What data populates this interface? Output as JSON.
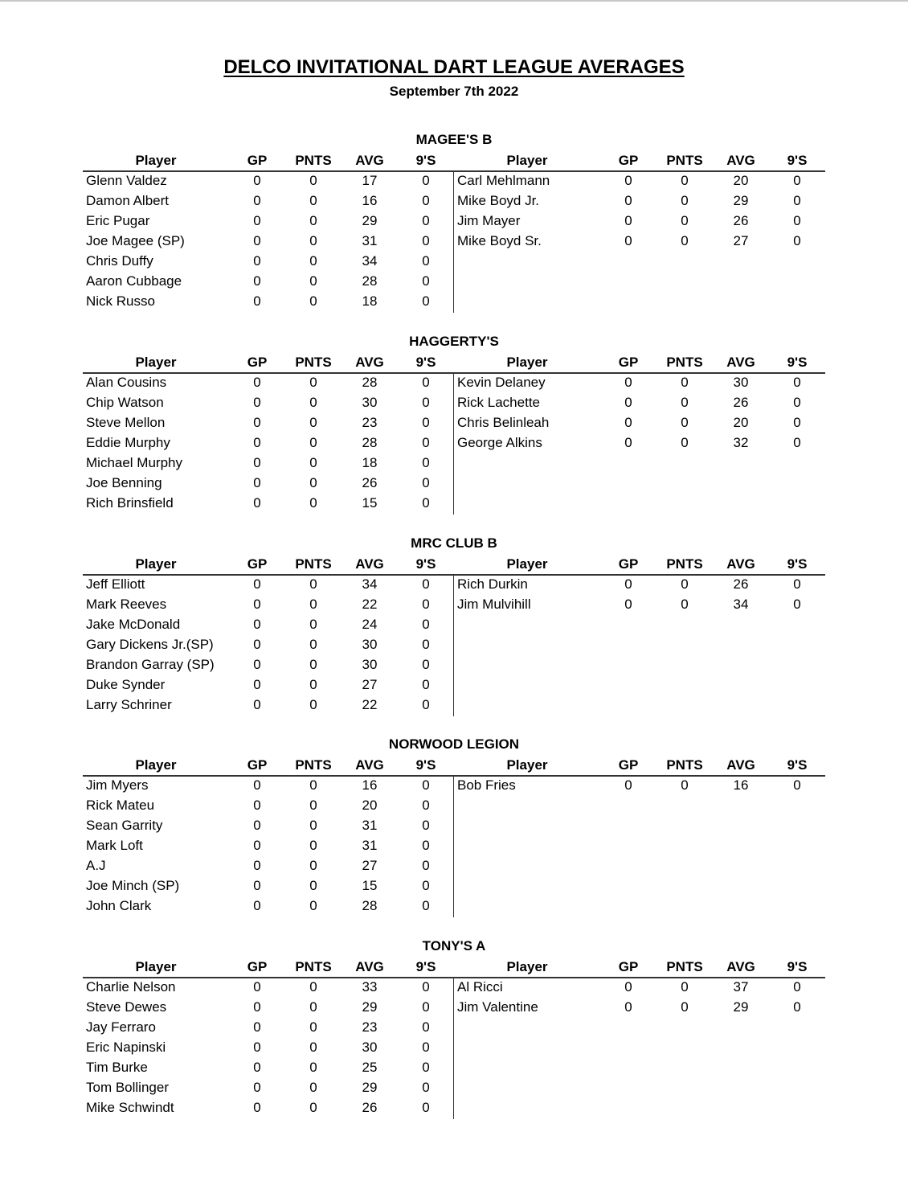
{
  "title": "DELCO INVITATIONAL DART LEAGUE AVERAGES",
  "date": "September 7th 2022",
  "columns": [
    "Player",
    "GP",
    "PNTS",
    "AVG",
    "9'S"
  ],
  "teams": [
    {
      "name": "MAGEE'S B",
      "left": [
        [
          "Glenn Valdez",
          "0",
          "0",
          "17",
          "0"
        ],
        [
          "Damon Albert",
          "0",
          "0",
          "16",
          "0"
        ],
        [
          "Eric Pugar",
          "0",
          "0",
          "29",
          "0"
        ],
        [
          "Joe Magee (SP)",
          "0",
          "0",
          "31",
          "0"
        ],
        [
          "Chris Duffy",
          "0",
          "0",
          "34",
          "0"
        ],
        [
          "Aaron Cubbage",
          "0",
          "0",
          "28",
          "0"
        ],
        [
          "Nick Russo",
          "0",
          "0",
          "18",
          "0"
        ]
      ],
      "right": [
        [
          "Carl Mehlmann",
          "0",
          "0",
          "20",
          "0"
        ],
        [
          "Mike Boyd  Jr.",
          "0",
          "0",
          "29",
          "0"
        ],
        [
          "Jim Mayer",
          "0",
          "0",
          "26",
          "0"
        ],
        [
          "Mike Boyd Sr.",
          "0",
          "0",
          "27",
          "0"
        ]
      ]
    },
    {
      "name": "HAGGERTY'S",
      "left": [
        [
          "Alan Cousins",
          "0",
          "0",
          "28",
          "0"
        ],
        [
          "Chip Watson",
          "0",
          "0",
          "30",
          "0"
        ],
        [
          "Steve Mellon",
          "0",
          "0",
          "23",
          "0"
        ],
        [
          "Eddie Murphy",
          "0",
          "0",
          "28",
          "0"
        ],
        [
          "Michael Murphy",
          "0",
          "0",
          "18",
          "0"
        ],
        [
          "Joe Benning",
          "0",
          "0",
          "26",
          "0"
        ],
        [
          "Rich Brinsfield",
          "0",
          "0",
          "15",
          "0"
        ]
      ],
      "right": [
        [
          "Kevin Delaney",
          "0",
          "0",
          "30",
          "0"
        ],
        [
          "Rick Lachette",
          "0",
          "0",
          "26",
          "0"
        ],
        [
          "Chris Belinleah",
          "0",
          "0",
          "20",
          "0"
        ],
        [
          "George Alkins",
          "0",
          "0",
          "32",
          "0"
        ]
      ]
    },
    {
      "name": "MRC CLUB B",
      "left": [
        [
          "Jeff Elliott",
          "0",
          "0",
          "34",
          "0"
        ],
        [
          "Mark Reeves",
          "0",
          "0",
          "22",
          "0"
        ],
        [
          "Jake McDonald",
          "0",
          "0",
          "24",
          "0"
        ],
        [
          "Gary Dickens Jr.(SP)",
          "0",
          "0",
          "30",
          "0"
        ],
        [
          "Brandon Garray (SP)",
          "0",
          "0",
          "30",
          "0"
        ],
        [
          "Duke Synder",
          "0",
          "0",
          "27",
          "0"
        ],
        [
          "Larry Schriner",
          "0",
          "0",
          "22",
          "0"
        ]
      ],
      "right": [
        [
          "Rich Durkin",
          "0",
          "0",
          "26",
          "0"
        ],
        [
          "Jim Mulvihill",
          "0",
          "0",
          "34",
          "0"
        ]
      ]
    },
    {
      "name": "NORWOOD LEGION",
      "left": [
        [
          "Jim Myers",
          "0",
          "0",
          "16",
          "0"
        ],
        [
          "Rick Mateu",
          "0",
          "0",
          "20",
          "0"
        ],
        [
          "Sean Garrity",
          "0",
          "0",
          "31",
          "0"
        ],
        [
          "Mark Loft",
          "0",
          "0",
          "31",
          "0"
        ],
        [
          "A.J",
          "0",
          "0",
          "27",
          "0"
        ],
        [
          "Joe Minch (SP)",
          "0",
          "0",
          "15",
          "0"
        ],
        [
          "John Clark",
          "0",
          "0",
          "28",
          "0"
        ]
      ],
      "right": [
        [
          "Bob Fries",
          "0",
          "0",
          "16",
          "0"
        ]
      ]
    },
    {
      "name": "TONY'S A",
      "left": [
        [
          "Charlie Nelson",
          "0",
          "0",
          "33",
          "0"
        ],
        [
          "Steve Dewes",
          "0",
          "0",
          "29",
          "0"
        ],
        [
          "Jay Ferraro",
          "0",
          "0",
          "23",
          "0"
        ],
        [
          "Eric Napinski",
          "0",
          "0",
          "30",
          "0"
        ],
        [
          "Tim Burke",
          "0",
          "0",
          "25",
          "0"
        ],
        [
          "Tom Bollinger",
          "0",
          "0",
          "29",
          "0"
        ],
        [
          "Mike Schwindt",
          "0",
          "0",
          "26",
          "0"
        ]
      ],
      "right": [
        [
          "Al Ricci",
          "0",
          "0",
          "37",
          "0"
        ],
        [
          "Jim Valentine",
          "0",
          "0",
          "29",
          "0"
        ]
      ]
    }
  ]
}
